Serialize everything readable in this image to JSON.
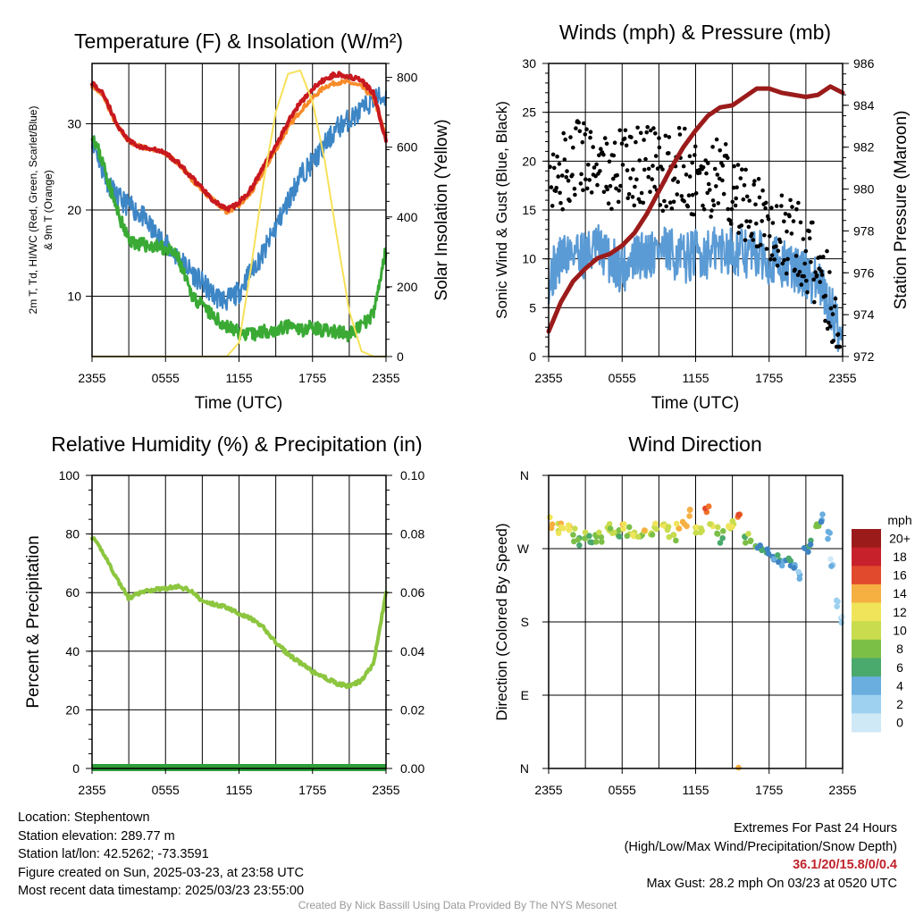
{
  "panels": {
    "temp": {
      "title": "Temperature (F) & Insolation (W/m²)",
      "ylabel_left_1": "2m T, Td, HI/WC (Red, Green, Scarlet/Blue)",
      "ylabel_left_2": "& 9m T (Orange)",
      "ylabel_right": "Solar Insolation (Yellow)",
      "xlabel": "Time (UTC)"
    },
    "wind": {
      "title": "Winds (mph) & Pressure (mb)",
      "ylabel_left": "Sonic Wind & Gust (Blue, Black)",
      "ylabel_right": "Station Pressure (Maroon)",
      "xlabel": "Time (UTC)"
    },
    "rh": {
      "title": "Relative Humidity (%) & Precipitation (in)",
      "ylabel_left": "Percent & Precipitation"
    },
    "dir": {
      "title": "Wind Direction",
      "ylabel_left": "Direction (Colored By Speed)",
      "colorbar_title": "mph"
    }
  },
  "info": {
    "location": "Location: Stephentown",
    "elevation": "Station elevation: 289.77 m",
    "latlon": "Station lat/lon: 42.5262; -73.3591",
    "created": "Figure created on Sun, 2025-03-23, at 23:58 UTC",
    "recent": "Most recent data timestamp: 2025/03/23 23:55:00"
  },
  "extremes": {
    "title": "Extremes For Past 24 Hours",
    "subtitle": "(High/Low/Max Wind/Precipitation/Snow Depth)",
    "values": "36.1/20/15.8/0/0.4",
    "max_gust": "Max Gust: 28.2 mph On 03/23 at 0520 UTC"
  },
  "credit": "Created By Nick Bassill Using Data Provided By The NYS Mesonet",
  "chart_data": [
    {
      "type": "line",
      "title": "Temperature (F) & Insolation (W/m²)",
      "xlabel": "Time (UTC)",
      "ylabel": "2m T, Td, HI/WC (Red, Green, Scarlet/Blue) & 9m T (Orange)",
      "ylabel_right": "Solar Insolation (Yellow)",
      "x_hours": [
        0,
        1,
        2,
        3,
        4,
        5,
        6,
        7,
        8,
        9,
        10,
        11,
        12,
        13,
        14,
        15,
        16,
        17,
        18,
        19,
        20,
        21,
        22,
        23,
        24
      ],
      "xticks": [
        "2355",
        "0555",
        "1155",
        "1755",
        "2355"
      ],
      "ylim": [
        3,
        37
      ],
      "yticks": [
        10,
        20,
        30
      ],
      "ylim_right": [
        0,
        840
      ],
      "yticks_right": [
        0,
        200,
        400,
        600,
        800
      ],
      "colors": {
        "temp": "#c8191f",
        "temp9m": "#f88b2a",
        "dewpoint": "#3aaa35",
        "windchill": "#3d86c6",
        "solar": "#f7e15a"
      },
      "series": [
        {
          "name": "2m T",
          "values": [
            34.8,
            33.3,
            30,
            28,
            27.3,
            27,
            26.6,
            25.5,
            24,
            22.5,
            21,
            20,
            20.8,
            22.5,
            25,
            27.5,
            30.2,
            32.5,
            34,
            35.2,
            35.8,
            35.5,
            35,
            33.5,
            28
          ]
        },
        {
          "name": "Td",
          "values": [
            29,
            25,
            20,
            16.5,
            16,
            15.8,
            15.5,
            14.5,
            10.5,
            8.8,
            7.5,
            6.5,
            5.8,
            5.5,
            6,
            6,
            6.5,
            6,
            6.5,
            6,
            5.8,
            5.5,
            6.5,
            8,
            15.5
          ]
        },
        {
          "name": "HI/WC",
          "values": [
            28.5,
            24,
            21.5,
            20.5,
            19.5,
            17.5,
            16,
            14.5,
            13,
            11.5,
            10,
            9.5,
            10.5,
            13,
            15,
            18,
            21,
            24,
            25.5,
            27.5,
            29.5,
            30.5,
            31.5,
            33,
            33
          ]
        },
        {
          "name": "9m T",
          "values": [
            34.5,
            33,
            29.8,
            28,
            27.3,
            27,
            26.5,
            25.5,
            23.8,
            22.3,
            21,
            19.8,
            20.5,
            22,
            24.5,
            27,
            29.5,
            31.5,
            33,
            34.3,
            34.8,
            34.8,
            34.3,
            33,
            28.5
          ]
        },
        {
          "name": "Solar",
          "values": [
            0,
            0,
            0,
            0,
            0,
            0,
            0,
            0,
            0,
            0,
            0,
            0,
            40,
            260,
            500,
            700,
            810,
            820,
            730,
            560,
            340,
            130,
            15,
            0,
            0
          ]
        }
      ]
    },
    {
      "type": "line",
      "title": "Winds (mph) & Pressure (mb)",
      "xlabel": "Time (UTC)",
      "ylabel": "Sonic Wind & Gust (Blue, Black)",
      "ylabel_right": "Station Pressure (Maroon)",
      "x_hours": [
        0,
        1,
        2,
        3,
        4,
        5,
        6,
        7,
        8,
        9,
        10,
        11,
        12,
        13,
        14,
        15,
        16,
        17,
        18,
        19,
        20,
        21,
        22,
        23,
        24
      ],
      "xticks": [
        "2355",
        "0555",
        "1155",
        "1755",
        "2355"
      ],
      "ylim": [
        0,
        30
      ],
      "yticks": [
        0,
        5,
        10,
        15,
        20,
        25,
        30
      ],
      "ylim_right": [
        972,
        986
      ],
      "yticks_right": [
        972,
        974,
        976,
        978,
        980,
        982,
        984,
        986
      ],
      "colors": {
        "wind": "#5b9bd5",
        "gust": "#000000",
        "pressure": "#9b1b1b"
      },
      "series": [
        {
          "name": "Sonic Wind",
          "values": [
            8,
            10,
            11,
            10.5,
            11,
            10,
            9,
            10,
            10.5,
            11,
            10.5,
            10,
            10.5,
            10.5,
            11,
            11,
            10.5,
            10.5,
            10,
            9.5,
            9,
            8.5,
            7.5,
            5,
            2
          ]
        },
        {
          "name": "Gust",
          "values": [
            17,
            19,
            20,
            21,
            20,
            19,
            20,
            19,
            20,
            19,
            19,
            20,
            18,
            18,
            19,
            17,
            16,
            15,
            14,
            13,
            12,
            11,
            9,
            6,
            2
          ]
        },
        {
          "name": "Station Pressure",
          "values": [
            973.2,
            974.6,
            975.6,
            976.2,
            976.7,
            976.9,
            977.3,
            977.9,
            978.8,
            979.9,
            981,
            982,
            982.8,
            983.5,
            983.9,
            984,
            984.4,
            984.8,
            984.8,
            984.6,
            984.5,
            984.4,
            984.5,
            984.9,
            984.6
          ]
        }
      ]
    },
    {
      "type": "line",
      "title": "Relative Humidity (%) & Precipitation (in)",
      "ylabel": "Percent & Precipitation",
      "x_hours": [
        0,
        1,
        2,
        3,
        4,
        5,
        6,
        7,
        8,
        9,
        10,
        11,
        12,
        13,
        14,
        15,
        16,
        17,
        18,
        19,
        20,
        21,
        22,
        23,
        24
      ],
      "xticks": [
        "2355",
        "0555",
        "1155",
        "1755",
        "2355"
      ],
      "ylim": [
        0,
        100
      ],
      "yticks": [
        0,
        20,
        40,
        60,
        80,
        100
      ],
      "ylim_right": [
        0,
        0.1
      ],
      "yticks_right": [
        "0.00",
        "0.02",
        "0.04",
        "0.06",
        "0.08",
        "0.10"
      ],
      "colors": {
        "rh": "#8cc63f",
        "precip": "#2e9e3a"
      },
      "series": [
        {
          "name": "RH",
          "values": [
            79,
            73,
            65,
            58,
            60,
            61,
            61.5,
            62,
            61,
            57,
            56,
            55,
            53,
            51,
            48,
            43,
            39,
            36,
            33,
            31,
            29,
            28,
            30,
            36,
            60
          ]
        },
        {
          "name": "Precipitation",
          "values": [
            0,
            0,
            0,
            0,
            0,
            0,
            0,
            0,
            0,
            0,
            0,
            0,
            0,
            0,
            0,
            0,
            0,
            0,
            0,
            0,
            0,
            0,
            0,
            0,
            0
          ]
        }
      ]
    },
    {
      "type": "scatter",
      "title": "Wind Direction",
      "ylabel": "Direction (Colored By Speed)",
      "xticks": [
        "2355",
        "0555",
        "1155",
        "1755",
        "2355"
      ],
      "yticks": [
        "N",
        "E",
        "S",
        "W",
        "N"
      ],
      "ylim_degrees": [
        0,
        360
      ],
      "colorbar": {
        "title": "mph",
        "labels": [
          "0",
          "2",
          "4",
          "6",
          "8",
          "10",
          "12",
          "14",
          "16",
          "18",
          "20+"
        ],
        "colors": [
          "#cfe9f7",
          "#9dd1ef",
          "#6aaedf",
          "#3e83c2",
          "#4aa96c",
          "#7cbf47",
          "#c8dc4d",
          "#f0e55a",
          "#f6b042",
          "#f27329",
          "#e24a2d",
          "#c7222b",
          "#9b1b1b"
        ]
      },
      "points_hour": [
        0.3,
        0.8,
        1.2,
        1.7,
        2.0,
        2.5,
        3.0,
        3.4,
        3.9,
        4.3,
        4.8,
        5.2,
        5.7,
        6.1,
        6.6,
        7.0,
        7.5,
        7.9,
        8.4,
        8.8,
        9.3,
        9.7,
        10.2,
        10.6,
        11.1,
        11.5,
        12.0,
        12.4,
        12.9,
        13.3,
        13.8,
        14.2,
        14.7,
        15.1,
        15.6,
        16.0,
        16.5,
        16.9,
        17.4,
        17.8,
        18.3,
        18.7,
        19.2,
        19.6,
        20.1,
        20.5,
        21.0,
        21.4,
        21.9,
        22.3,
        22.8,
        23.2,
        23.6,
        23.9,
        15.5
      ],
      "points_deg": [
        300,
        292,
        295,
        298,
        287,
        283,
        290,
        278,
        285,
        284,
        296,
        289,
        286,
        294,
        288,
        290,
        285,
        292,
        289,
        294,
        299,
        293,
        287,
        295,
        300,
        310,
        296,
        290,
        315,
        300,
        288,
        283,
        298,
        300,
        312,
        285,
        280,
        273,
        268,
        265,
        260,
        262,
        255,
        258,
        250,
        238,
        270,
        280,
        300,
        305,
        282,
        250,
        205,
        185,
        1
      ],
      "points_mph": [
        13,
        11,
        12,
        13,
        9,
        7,
        10,
        6,
        8,
        9,
        11,
        10,
        8,
        12,
        10,
        11,
        9,
        12,
        10,
        11,
        12,
        10,
        9,
        12,
        13,
        14,
        11,
        10,
        15,
        12,
        9,
        7,
        12,
        11,
        15,
        8,
        9,
        7,
        6,
        6,
        5,
        7,
        4,
        6,
        4,
        3,
        5,
        6,
        8,
        4,
        3,
        2,
        1,
        1,
        13
      ]
    }
  ]
}
